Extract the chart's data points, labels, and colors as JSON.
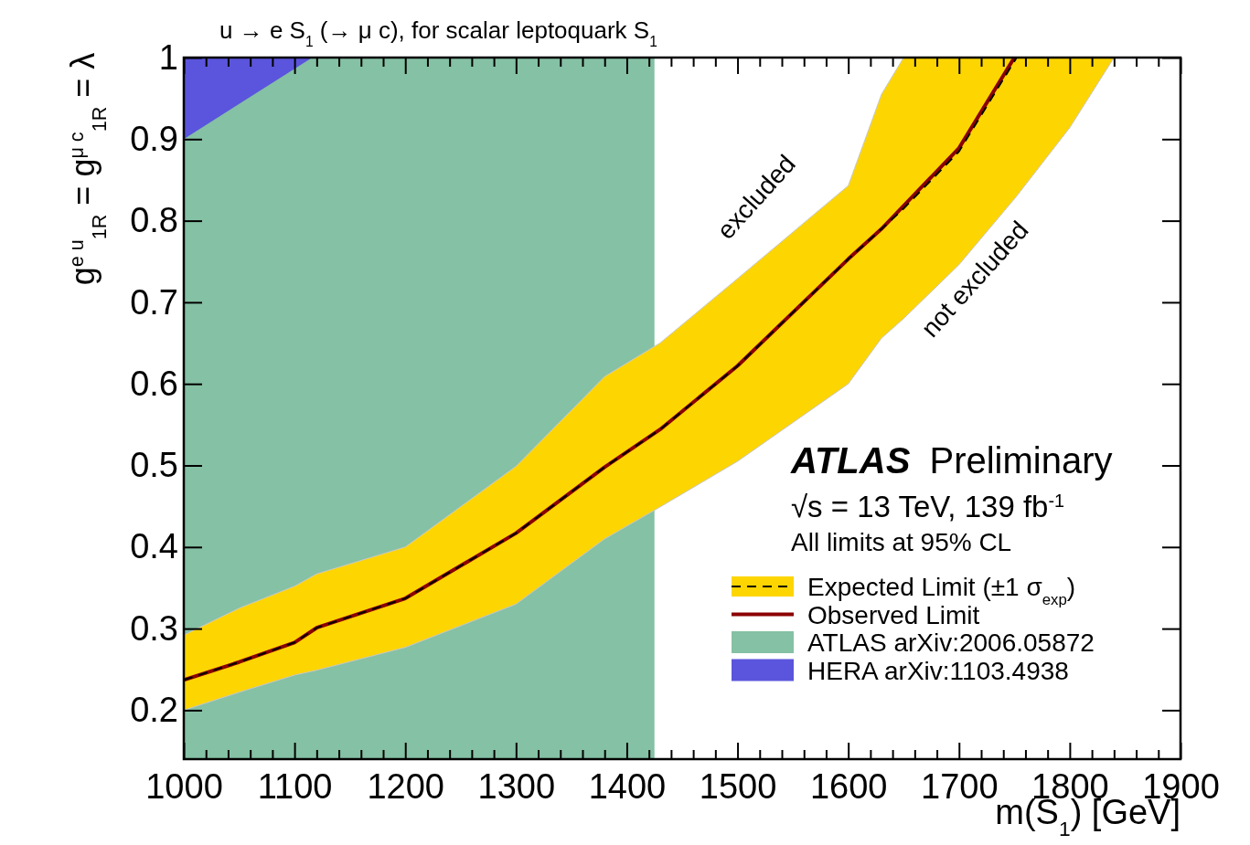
{
  "chart_data": {
    "type": "line",
    "title": "u → e S$_{1}$ (→ μ c), for scalar leptoquark S$_{1}$",
    "xlabel": "m(S$_{1}$) [GeV]",
    "ylabel": "g$^{e u}$$_{1R}$ = g$^{μ c}$$_{1R}$ = λ",
    "xlim": [
      1000,
      1900
    ],
    "ylim": [
      0.14,
      1
    ],
    "xticks": [
      1000,
      {
        "value": 1020,
        "label": null
      },
      {
        "value": 1040,
        "label": null
      },
      {
        "value": 1060,
        "label": null
      },
      {
        "value": 1080,
        "label": null
      },
      1100,
      {
        "value": 1120,
        "label": null
      },
      {
        "value": 1140,
        "label": null
      },
      {
        "value": 1160,
        "label": null
      },
      {
        "value": 1180,
        "label": null
      },
      1200,
      {
        "value": 1220,
        "label": null
      },
      {
        "value": 1240,
        "label": null
      },
      {
        "value": 1260,
        "label": null
      },
      {
        "value": 1280,
        "label": null
      },
      1300,
      {
        "value": 1320,
        "label": null
      },
      {
        "value": 1340,
        "label": null
      },
      {
        "value": 1360,
        "label": null
      },
      {
        "value": 1380,
        "label": null
      },
      1400,
      {
        "value": 1420,
        "label": null
      },
      {
        "value": 1440,
        "label": null
      },
      {
        "value": 1460,
        "label": null
      },
      {
        "value": 1480,
        "label": null
      },
      1500,
      {
        "value": 1520,
        "label": null
      },
      {
        "value": 1540,
        "label": null
      },
      {
        "value": 1560,
        "label": null
      },
      {
        "value": 1580,
        "label": null
      },
      1600,
      {
        "value": 1620,
        "label": null
      },
      {
        "value": 1640,
        "label": null
      },
      {
        "value": 1660,
        "label": null
      },
      {
        "value": 1680,
        "label": null
      },
      1700,
      {
        "value": 1720,
        "label": null
      },
      {
        "value": 1740,
        "label": null
      },
      {
        "value": 1760,
        "label": null
      },
      {
        "value": 1780,
        "label": null
      },
      1800,
      {
        "value": 1820,
        "label": null
      },
      {
        "value": 1840,
        "label": null
      },
      {
        "value": 1860,
        "label": null
      },
      {
        "value": 1880,
        "label": null
      },
      1900
    ],
    "yticks": [
      0.2,
      0.3,
      0.4,
      0.5,
      0.6,
      0.7,
      0.8,
      0.9,
      1
    ],
    "legend": "right",
    "series": [
      {
        "name": "ATLAS arXiv:2006.05872",
        "type": "area",
        "color": "#85c1a4",
        "x": [
          1000,
          1425
        ],
        "values": [
          1,
          1
        ]
      },
      {
        "name": "HERA arXiv:1103.4938",
        "type": "area",
        "color": "#5a55dc",
        "x": [
          1000,
          1116
        ],
        "values": [
          0.9,
          1.0
        ]
      },
      {
        "name": "Expected Limit (±1 σ$_{exp}$)",
        "type": "line",
        "line_style": "dashed",
        "color": "#000000",
        "x": [
          1000,
          1050,
          1100,
          1120,
          1200,
          1300,
          1380,
          1430,
          1500,
          1600,
          1630,
          1650,
          1700,
          1752,
          1800,
          1840
        ],
        "values": [
          0.237,
          0.259,
          0.283,
          0.301,
          0.337,
          0.417,
          0.498,
          0.544,
          0.622,
          0.753,
          0.79,
          0.815,
          0.885,
          1.0,
          null,
          null
        ],
        "lower": [
          0.2,
          0.222,
          0.243,
          0.249,
          0.277,
          0.33,
          0.41,
          0.449,
          0.505,
          0.6,
          0.656,
          0.68,
          0.746,
          0.83,
          0.914,
          1.0
        ],
        "upper": [
          0.292,
          0.325,
          0.352,
          0.367,
          0.4,
          0.499,
          0.609,
          0.65,
          0.729,
          0.843,
          0.955,
          1.0,
          1.0,
          1.0,
          1.0,
          1.0
        ]
      },
      {
        "name": "Observed Limit",
        "type": "line",
        "line_style": "solid",
        "color": "#8b0000",
        "x": [
          1000,
          1050,
          1100,
          1120,
          1200,
          1300,
          1380,
          1430,
          1500,
          1600,
          1630,
          1700,
          1750
        ],
        "values": [
          0.237,
          0.259,
          0.283,
          0.301,
          0.337,
          0.417,
          0.498,
          0.544,
          0.622,
          0.753,
          0.79,
          0.889,
          1.0
        ]
      }
    ],
    "annotations": [
      "ATLAS Preliminary",
      "√s = 13 TeV, 139 fb$^{-1}$",
      "All limits at 95% CL",
      "excluded",
      "not excluded"
    ]
  }
}
